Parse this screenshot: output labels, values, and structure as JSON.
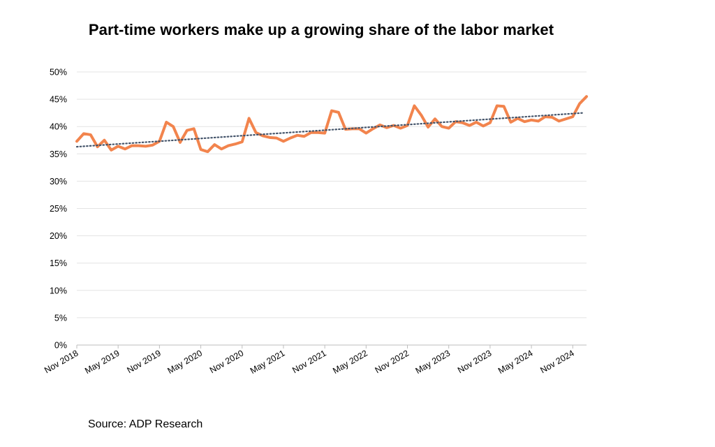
{
  "chart_data": {
    "type": "line",
    "title": "Part-time workers make up a growing share of the labor market",
    "source": "Source: ADP Research",
    "xlabel": "",
    "ylabel": "",
    "ylim": [
      0,
      50
    ],
    "y_ticks": [
      "0%",
      "5%",
      "10%",
      "15%",
      "20%",
      "25%",
      "30%",
      "35%",
      "40%",
      "45%",
      "50%"
    ],
    "x_tick_labels": [
      "Nov 2018",
      "May 2019",
      "Nov 2019",
      "May 2020",
      "Nov 2020",
      "May 2021",
      "Nov 2021",
      "May 2022",
      "Nov 2022",
      "May 2023",
      "Nov 2023",
      "May 2024",
      "Nov 2024"
    ],
    "x_start": "2018-11",
    "grid": true,
    "legend": "none",
    "series": [
      {
        "color": "#f2844d",
        "values": [
          37.3,
          38.7,
          38.5,
          36.3,
          37.5,
          35.7,
          36.4,
          35.9,
          36.5,
          36.5,
          36.4,
          36.6,
          37.3,
          40.8,
          40.0,
          37.1,
          39.3,
          39.6,
          35.8,
          35.4,
          36.7,
          35.9,
          36.5,
          36.8,
          37.2,
          41.5,
          38.9,
          38.3,
          38.0,
          37.9,
          37.3,
          37.9,
          38.4,
          38.2,
          38.9,
          38.9,
          38.8,
          42.9,
          42.6,
          39.5,
          39.6,
          39.6,
          38.8,
          39.6,
          40.3,
          39.8,
          40.2,
          39.7,
          40.2,
          43.8,
          42.1,
          39.9,
          41.4,
          40.0,
          39.7,
          40.9,
          40.7,
          40.2,
          40.8,
          40.1,
          40.7,
          43.8,
          43.7,
          40.8,
          41.5,
          40.9,
          41.2,
          41.0,
          41.8,
          41.7,
          41.0,
          41.4,
          41.8,
          44.2,
          45.5
        ]
      }
    ],
    "trendline": {
      "color": "#44546a",
      "style": "dotted",
      "start": 36.3,
      "end": 42.5
    }
  }
}
